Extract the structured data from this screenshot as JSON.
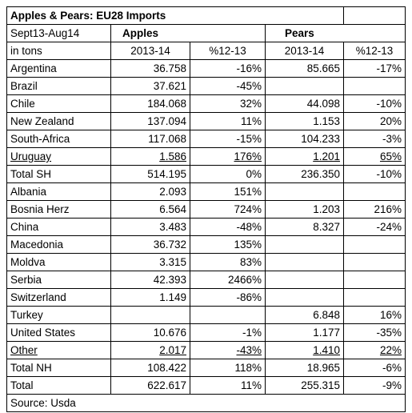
{
  "title": "Apples & Pears: EU28 Imports",
  "header": {
    "period": "Sept13-Aug14",
    "apples": "Apples",
    "pears": "Pears",
    "unit": "in tons",
    "col_year_apples": "2013-14",
    "col_pct_apples": "%12-13",
    "col_year_pears": "2013-14",
    "col_pct_pears": "%12-13"
  },
  "rows": [
    {
      "country": "Argentina",
      "a_val": "36.758",
      "a_pct": "-16%",
      "p_val": "85.665",
      "p_pct": "-17%",
      "ul": false,
      "bold": false
    },
    {
      "country": "Brazil",
      "a_val": "37.621",
      "a_pct": "-45%",
      "p_val": "",
      "p_pct": "",
      "ul": false,
      "bold": false
    },
    {
      "country": "Chile",
      "a_val": "184.068",
      "a_pct": "32%",
      "p_val": "44.098",
      "p_pct": "-10%",
      "ul": false,
      "bold": false
    },
    {
      "country": "New Zealand",
      "a_val": "137.094",
      "a_pct": "11%",
      "p_val": "1.153",
      "p_pct": "20%",
      "ul": false,
      "bold": false
    },
    {
      "country": "South-Africa",
      "a_val": "117.068",
      "a_pct": "-15%",
      "p_val": "104.233",
      "p_pct": "-3%",
      "ul": false,
      "bold": false
    },
    {
      "country": "Uruguay",
      "a_val": "1.586",
      "a_pct": "176%",
      "p_val": "1.201",
      "p_pct": "65%",
      "ul": true,
      "bold": false
    },
    {
      "country": "Total SH",
      "a_val": "514.195",
      "a_pct": "0%",
      "p_val": "236.350",
      "p_pct": "-10%",
      "ul": false,
      "bold": false
    },
    {
      "country": "Albania",
      "a_val": "2.093",
      "a_pct": "151%",
      "p_val": "",
      "p_pct": "",
      "ul": false,
      "bold": false
    },
    {
      "country": "Bosnia Herz",
      "a_val": "6.564",
      "a_pct": "724%",
      "p_val": "1.203",
      "p_pct": "216%",
      "ul": false,
      "bold": false
    },
    {
      "country": "China",
      "a_val": "3.483",
      "a_pct": "-48%",
      "p_val": "8.327",
      "p_pct": "-24%",
      "ul": false,
      "bold": false
    },
    {
      "country": "Macedonia",
      "a_val": "36.732",
      "a_pct": "135%",
      "p_val": "",
      "p_pct": "",
      "ul": false,
      "bold": false
    },
    {
      "country": "Moldva",
      "a_val": "3.315",
      "a_pct": "83%",
      "p_val": "",
      "p_pct": "",
      "ul": false,
      "bold": false
    },
    {
      "country": "Serbia",
      "a_val": "42.393",
      "a_pct": "2466%",
      "p_val": "",
      "p_pct": "",
      "ul": false,
      "bold": false
    },
    {
      "country": "Switzerland",
      "a_val": "1.149",
      "a_pct": "-86%",
      "p_val": "",
      "p_pct": "",
      "ul": false,
      "bold": false
    },
    {
      "country": "Turkey",
      "a_val": "",
      "a_pct": "",
      "p_val": "6.848",
      "p_pct": "16%",
      "ul": false,
      "bold": false
    },
    {
      "country": "United States",
      "a_val": "10.676",
      "a_pct": "-1%",
      "p_val": "1.177",
      "p_pct": "-35%",
      "ul": false,
      "bold": false
    },
    {
      "country": "Other",
      "a_val": "2.017",
      "a_pct": "-43%",
      "p_val": "1.410",
      "p_pct": "22%",
      "ul": true,
      "bold": false
    },
    {
      "country": "Total NH",
      "a_val": "108.422",
      "a_pct": "118%",
      "p_val": "18.965",
      "p_pct": "-6%",
      "ul": false,
      "bold": false
    },
    {
      "country": "Total",
      "a_val": "622.617",
      "a_pct": "11%",
      "p_val": "255.315",
      "p_pct": "-9%",
      "ul": false,
      "bold": false
    }
  ],
  "source": "Source: Usda"
}
